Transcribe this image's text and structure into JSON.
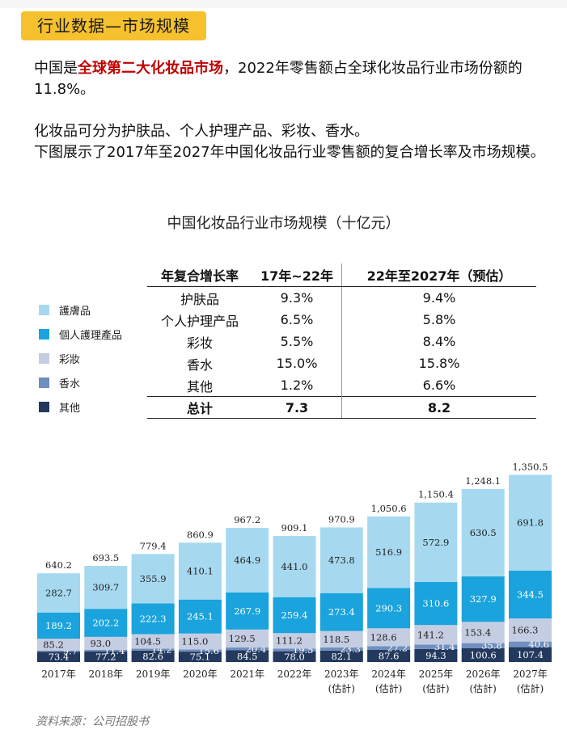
{
  "header": {
    "tag": "行业数据—市场规模"
  },
  "intro": {
    "p1_a": "中国是",
    "p1_highlight": "全球第二大化妆品市场",
    "p1_b": "，2022年零售额占全球化妆品行业市场份额的11.8%。",
    "p2_line1": "化妆品可分为护肤品、个人护理产品、彩妆、香水。",
    "p2_line2": "下图展示了2017年至2027年中国化妆品行业零售额的复合增长率及市场规模。"
  },
  "table": {
    "headers": [
      "年复合增长率",
      "17年~22年",
      "22年至2027年（预估）"
    ],
    "rows": [
      [
        "护肤品",
        "9.3%",
        "9.4%"
      ],
      [
        "个人护理产品",
        "6.5%",
        "5.8%"
      ],
      [
        "彩妆",
        "5.5%",
        "8.4%"
      ],
      [
        "香水",
        "15.0%",
        "15.8%"
      ],
      [
        "其他",
        "1.2%",
        "6.6%"
      ]
    ],
    "total": [
      "总计",
      "7.3",
      "8.2"
    ]
  },
  "colors": {
    "skincare": "#a6d9f0",
    "personal_care": "#1aa3dc",
    "makeup": "#c5cde2",
    "fragrance": "#6e8fbf",
    "other": "#23395d",
    "tag_bg": "#f6c12e",
    "highlight": "#c00000"
  },
  "chart_data": {
    "type": "bar",
    "stacked": true,
    "title": "中国化妆品行业市场规模（十亿元）",
    "categories": [
      "2017年",
      "2018年",
      "2019年",
      "2020年",
      "2021年",
      "2022年",
      "2023年(估計)",
      "2024年(估計)",
      "2025年(估計)",
      "2026年(估計)",
      "2027年(估計)"
    ],
    "series": [
      {
        "name": "其他",
        "key": "other",
        "values": [
          73.4,
          77.2,
          82.6,
          75.1,
          84.5,
          78.0,
          82.1,
          87.6,
          94.3,
          100.6,
          107.4
        ]
      },
      {
        "name": "香水",
        "key": "fragrance",
        "values": [
          9.7,
          11.4,
          14.2,
          15.6,
          20.4,
          19.5,
          23.3,
          27.2,
          31.4,
          35.8,
          40.6
        ]
      },
      {
        "name": "彩妆",
        "key": "makeup",
        "values": [
          85.2,
          93.0,
          104.5,
          115.0,
          129.5,
          111.2,
          118.5,
          128.6,
          141.2,
          153.4,
          166.3
        ]
      },
      {
        "name": "個人護理產品",
        "key": "personal_care",
        "values": [
          189.2,
          202.2,
          222.3,
          245.1,
          267.9,
          259.4,
          273.4,
          290.3,
          310.6,
          327.9,
          344.5
        ]
      },
      {
        "name": "護膚品",
        "key": "skincare",
        "values": [
          282.7,
          309.7,
          355.9,
          410.1,
          464.9,
          441.0,
          473.8,
          516.9,
          572.9,
          630.5,
          691.8
        ]
      }
    ],
    "totals": [
      "640.2",
      "693.5",
      "779.4",
      "860.9",
      "967.2",
      "909.1",
      "970.9",
      "1,050.6",
      "1,150.4",
      "1,248.1",
      "1,350.5"
    ],
    "legend": [
      "護膚品",
      "個人護理產品",
      "彩妝",
      "香水",
      "其他"
    ],
    "legend_placement": "left",
    "grid": false
  },
  "source": "资料来源：公司招股书"
}
